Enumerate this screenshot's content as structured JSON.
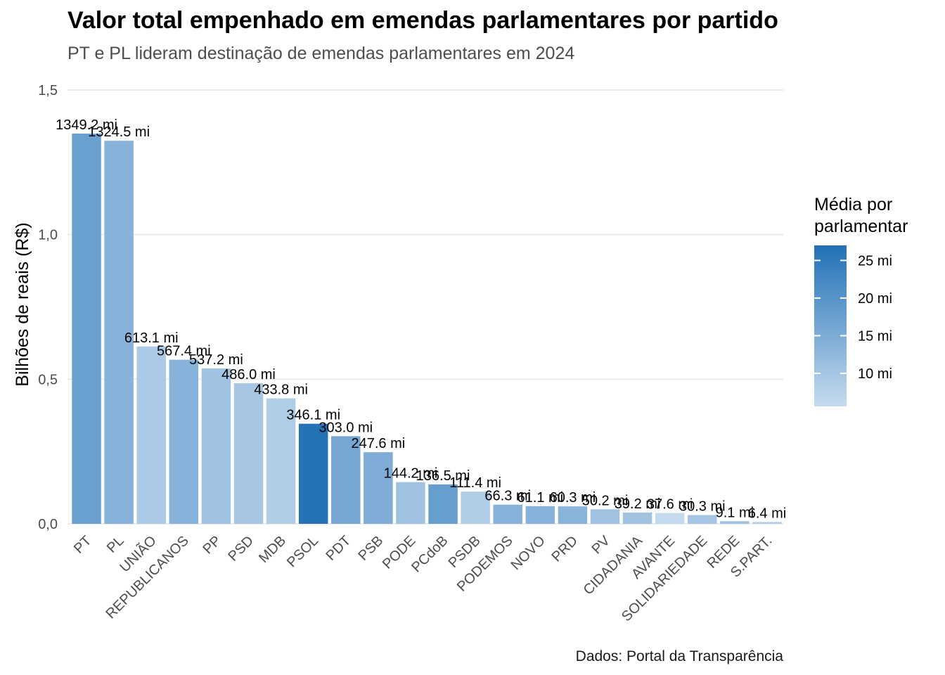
{
  "title": "Valor total empenhado em emendas parlamentares por partido",
  "subtitle": "PT e PL lideram destinação de emendas parlamentares em 2024",
  "caption": "Dados: Portal da Transparência",
  "legend": {
    "title_line1": "Média por",
    "title_line2": "parlamentar",
    "breaks": [
      25,
      20,
      15,
      10
    ],
    "break_labels": [
      "25 mi",
      "20 mi",
      "15 mi",
      "10 mi"
    ],
    "range": [
      5.6,
      27
    ],
    "color_low": "#c6dbef",
    "color_high": "#2171b5"
  },
  "chart_data": {
    "type": "bar",
    "ylabel": "Bilhões de reais (R$)",
    "xlabel": "",
    "ylim": [
      0,
      1.5
    ],
    "yticks": [
      0,
      0.5,
      1.0,
      1.5
    ],
    "ytick_labels": [
      "0,0",
      "0,5",
      "1,0",
      "1,5"
    ],
    "grid": true,
    "legend_position": "right",
    "categories": [
      "PT",
      "PL",
      "UNIÃO",
      "REPUBLICANOS",
      "PP",
      "PSD",
      "MDB",
      "PSOL",
      "PDT",
      "PSB",
      "PODE",
      "PCdoB",
      "PSDB",
      "PODEMOS",
      "NOVO",
      "PRD",
      "PV",
      "CIDADANIA",
      "AVANTE",
      "SOLIDARIEDADE",
      "REDE",
      "S.PART."
    ],
    "values": [
      1.3492,
      1.3245,
      0.6131,
      0.5674,
      0.5372,
      0.486,
      0.4338,
      0.3461,
      0.303,
      0.2476,
      0.1442,
      0.1365,
      0.1114,
      0.0663,
      0.0611,
      0.0603,
      0.0502,
      0.0392,
      0.0376,
      0.0303,
      0.0091,
      0.0064
    ],
    "data_labels": [
      "1349.2 mi",
      "1324.5 mi",
      "613.1 mi",
      "567.4 mi",
      "537.2 mi",
      "486.0 mi",
      "433.8 mi",
      "346.1 mi",
      "303.0 mi",
      "247.6 mi",
      "144.2 mi",
      "136.5 mi",
      "111.4 mi",
      "66.3 mi",
      "61.1 mi",
      "60.3 mi",
      "50.2 mi",
      "39.2 mi",
      "37.6 mi",
      "30.3 mi",
      "9.1 mi",
      "6.4 mi"
    ],
    "color_values": [
      17.5,
      13.8,
      9.0,
      13.8,
      10.5,
      9.8,
      8.5,
      26.5,
      16.0,
      15.0,
      10.5,
      18.0,
      8.5,
      13.8,
      13.8,
      13.5,
      10.5,
      10.5,
      6.0,
      10.0,
      10.5,
      8.0
    ]
  }
}
